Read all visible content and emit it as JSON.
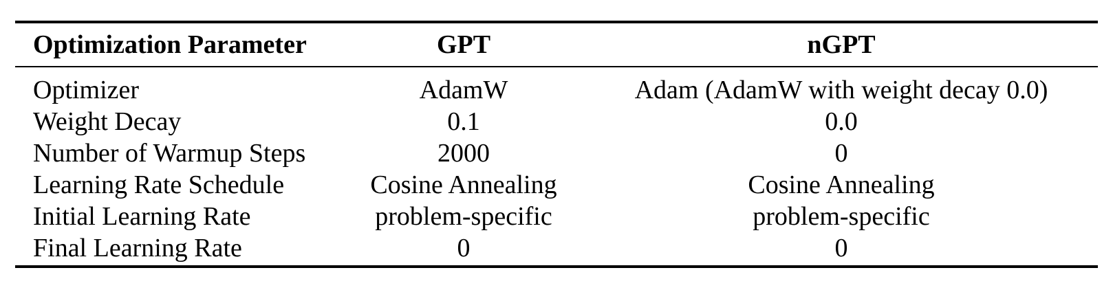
{
  "table": {
    "headers": [
      "Optimization Parameter",
      "GPT",
      "nGPT"
    ],
    "rows": [
      [
        "Optimizer",
        "AdamW",
        "Adam (AdamW with weight decay 0.0)"
      ],
      [
        "Weight Decay",
        "0.1",
        "0.0"
      ],
      [
        "Number of Warmup Steps",
        "2000",
        "0"
      ],
      [
        "Learning Rate Schedule",
        "Cosine Annealing",
        "Cosine Annealing"
      ],
      [
        "Initial Learning Rate",
        "problem-specific",
        "problem-specific"
      ],
      [
        "Final Learning Rate",
        "0",
        "0"
      ]
    ]
  }
}
